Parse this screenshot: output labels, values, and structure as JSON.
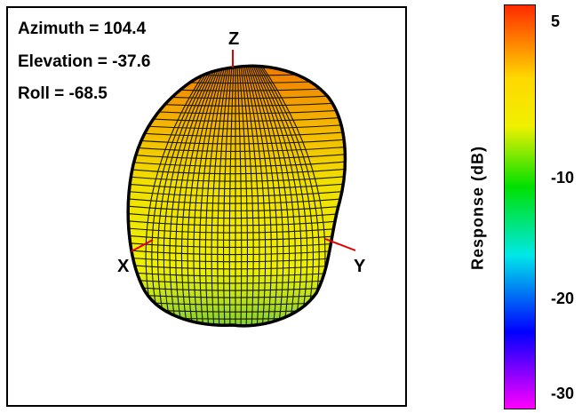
{
  "view": {
    "azimuth": "Azimuth = 104.4",
    "elevation": "Elevation = -37.6",
    "roll": "Roll = -68.5"
  },
  "axes": {
    "z": "Z",
    "x": "X",
    "y": "Y"
  },
  "colorbar": {
    "label": "Response  (dB)",
    "ticks": [
      "5",
      "-10",
      "-20",
      "-30"
    ],
    "range_db": [
      -32,
      7
    ],
    "colors": [
      "#ff2a00",
      "#ffd800",
      "#f0f000",
      "#00e000",
      "#00e8e8",
      "#0000ff",
      "#ff00ff"
    ]
  }
}
